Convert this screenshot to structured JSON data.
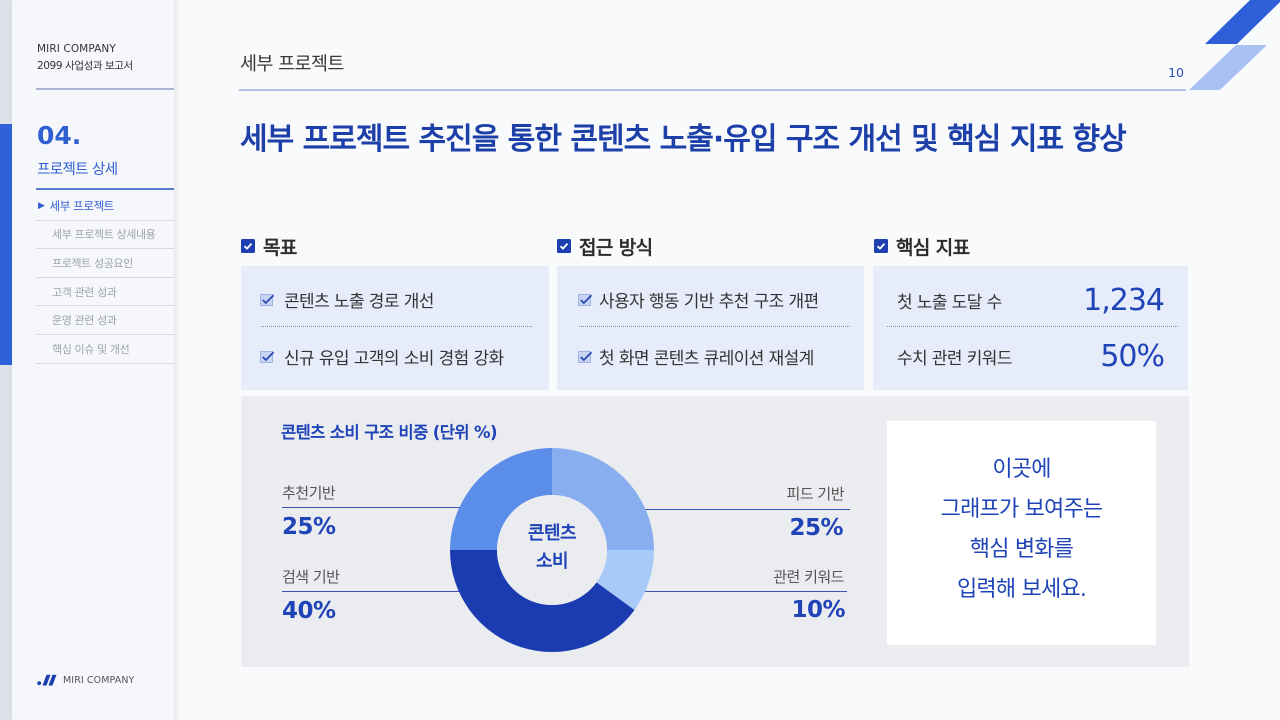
{
  "sidebar": {
    "company": "MIRI COMPANY",
    "report_title": "2099 사업성과 보고서",
    "section_number": "04.",
    "section_title": "프로젝트 상세",
    "active_marker": "▶",
    "nav": [
      {
        "label": "세부 프로젝트",
        "active": true
      },
      {
        "label": "세부 프로젝트 상세내용",
        "active": false
      },
      {
        "label": "프로젝트 성공요인",
        "active": false
      },
      {
        "label": "고객 관련 성과",
        "active": false
      },
      {
        "label": "운영 관련 성과",
        "active": false
      },
      {
        "label": "핵심 이슈 및 개선",
        "active": false
      }
    ],
    "footer_logo_text": "MIRI COMPANY"
  },
  "header": {
    "breadcrumb": "세부 프로젝트",
    "page_number": "10"
  },
  "main": {
    "title": "세부 프로젝트 추진을 통한 콘텐츠 노출·유입 구조 개선 및 핵심 지표 향상",
    "sections": [
      {
        "heading": "목표",
        "items": [
          "콘텐츠 노출 경로 개선",
          "신규 유입 고객의 소비 경험 강화"
        ]
      },
      {
        "heading": "접근 방식",
        "items": [
          "사용자 행동 기반 추천 구조 개편",
          "첫 화면 콘텐츠 큐레이션 재설계"
        ]
      },
      {
        "heading": "핵심 지표",
        "metrics": [
          {
            "label": "첫 노출 도달 수",
            "value": "1,234"
          },
          {
            "label": "수치 관련 키워드",
            "value": "50%"
          }
        ]
      }
    ],
    "note_box": {
      "lines": [
        "이곳에",
        "그래프가 보여주는",
        "핵심 변화를",
        "입력해 보세요."
      ]
    }
  },
  "colors": {
    "accent": "#1f44b8",
    "title": "#1c3fa8",
    "sidebar_accent": "#2f62d8",
    "card_bg": "#e6ecfa",
    "panel_bg": "#ebecf0"
  },
  "chart_data": {
    "type": "pie",
    "variant": "donut",
    "title": "콘텐츠 소비 구조 비중 (단위 %)",
    "center_label_lines": [
      "콘텐츠",
      "소비"
    ],
    "categories": [
      "피드 기반",
      "관련 키워드",
      "검색 기반",
      "추천기반"
    ],
    "values": [
      25,
      10,
      40,
      25
    ],
    "value_labels": [
      "25%",
      "10%",
      "40%",
      "25%"
    ],
    "colors": [
      "#89aef0",
      "#a9c9f8",
      "#1a3cb0",
      "#5b8ee8"
    ],
    "unit": "%",
    "start_angle": 0,
    "direction": "clockwise",
    "legend_position": "labels left/right with leader lines"
  }
}
